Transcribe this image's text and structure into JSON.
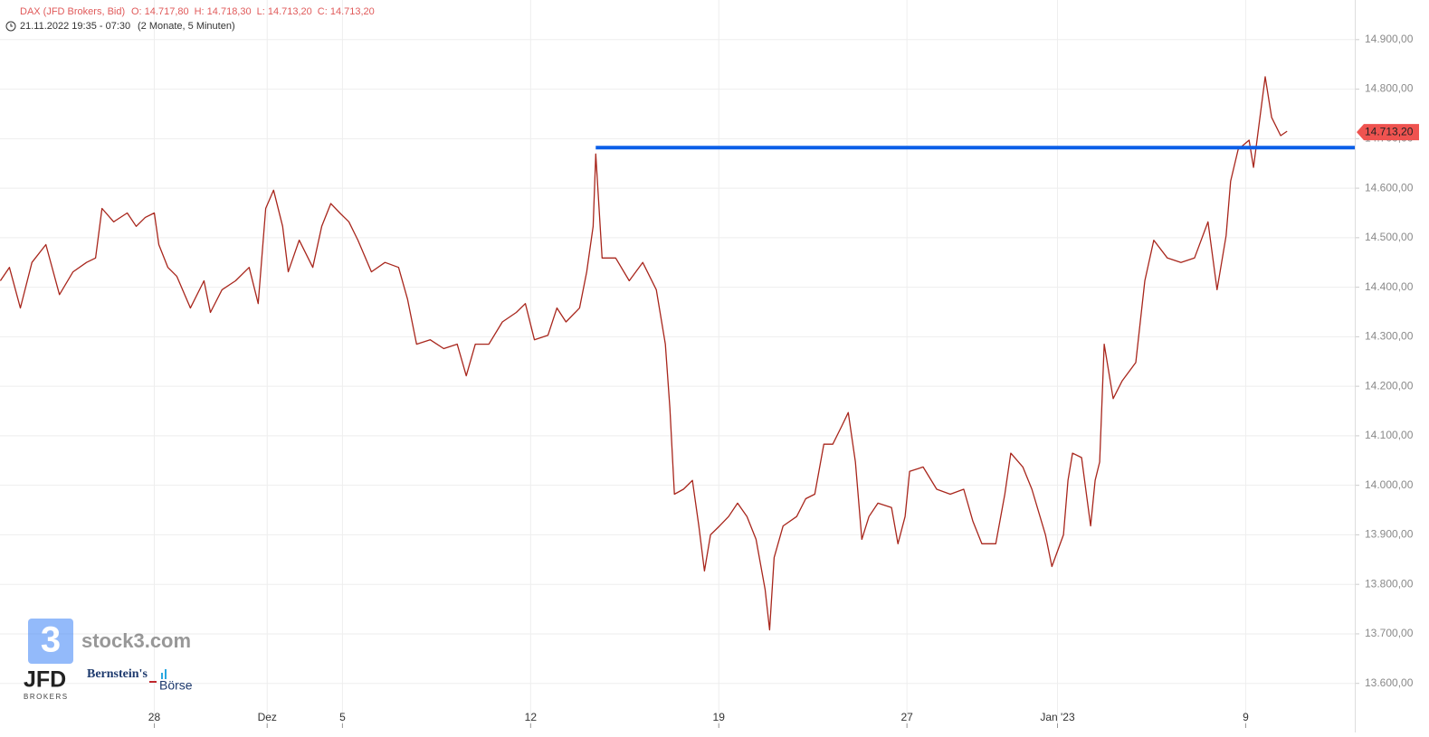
{
  "chart_data": {
    "type": "line",
    "title": "DAX (JFD Brokers, Bid)",
    "ohlc": [
      "O: 14.717,80",
      "H: 14.718,30",
      "L: 14.713,20",
      "C: 14.713,20"
    ],
    "period": "21.11.2022 19:35 - 07:30",
    "interval": "(2 Monate, 5 Minuten)",
    "color": "#a8261c",
    "grid": true,
    "xlim": [
      0.9,
      36.9
    ],
    "xticks": [
      {
        "value": 5,
        "label": "28"
      },
      {
        "value": 8,
        "label": "Dez"
      },
      {
        "value": 10,
        "label": "5"
      },
      {
        "value": 15,
        "label": "12"
      },
      {
        "value": 20,
        "label": "19"
      },
      {
        "value": 25,
        "label": "27"
      },
      {
        "value": 29,
        "label": "Jan '23"
      },
      {
        "value": 34,
        "label": "9"
      }
    ],
    "ylim": [
      13510,
      14980
    ],
    "yticks": [
      {
        "value": 13600,
        "label": "13.600,00"
      },
      {
        "value": 13700,
        "label": "13.700,00"
      },
      {
        "value": 13800,
        "label": "13.800,00"
      },
      {
        "value": 13900,
        "label": "13.900,00"
      },
      {
        "value": 14000,
        "label": "14.000,00"
      },
      {
        "value": 14100,
        "label": "14.100,00"
      },
      {
        "value": 14200,
        "label": "14.200,00"
      },
      {
        "value": 14300,
        "label": "14.300,00"
      },
      {
        "value": 14400,
        "label": "14.400,00"
      },
      {
        "value": 14500,
        "label": "14.500,00"
      },
      {
        "value": 14600,
        "label": "14.600,00"
      },
      {
        "value": 14700,
        "label": "14.700,00"
      },
      {
        "value": 14800,
        "label": "14.800,00"
      },
      {
        "value": 14900,
        "label": "14.900,00"
      }
    ],
    "last_price": {
      "value": 14713.2,
      "label": "14.713,20",
      "color": "#ef5350"
    },
    "level_line": {
      "value": 14682,
      "from_x": 16.73,
      "color": "#0b5fe8"
    },
    "x": [
      0.91,
      1.15,
      1.44,
      1.75,
      2.12,
      2.48,
      2.84,
      3.2,
      3.44,
      3.61,
      3.92,
      4.28,
      4.52,
      4.76,
      5,
      5.12,
      5.36,
      5.6,
      5.96,
      6.32,
      6.49,
      6.8,
      7.16,
      7.52,
      7.76,
      7.96,
      8.17,
      8.41,
      8.56,
      8.85,
      9.21,
      9.45,
      9.69,
      9.93,
      10.17,
      10.41,
      10.77,
      11.13,
      11.49,
      11.73,
      11.97,
      12.33,
      12.69,
      13.05,
      13.29,
      13.53,
      13.89,
      14.25,
      14.62,
      14.86,
      15.1,
      15.46,
      15.7,
      15.94,
      16.3,
      16.49,
      16.66,
      16.73,
      16.9,
      17.26,
      17.62,
      17.98,
      18.34,
      18.58,
      18.7,
      18.82,
      19.06,
      19.3,
      19.47,
      19.62,
      19.78,
      20.02,
      20.26,
      20.5,
      20.75,
      20.99,
      21.23,
      21.35,
      21.47,
      21.71,
      22.07,
      22.31,
      22.55,
      22.79,
      23.03,
      23.27,
      23.44,
      23.63,
      23.8,
      23.99,
      24.23,
      24.59,
      24.76,
      24.95,
      25.07,
      25.43,
      25.79,
      26.15,
      26.51,
      26.75,
      26.99,
      27.36,
      27.6,
      27.76,
      28.08,
      28.32,
      28.68,
      28.85,
      29.16,
      29.28,
      29.4,
      29.64,
      29.88,
      30,
      30.12,
      30.24,
      30.48,
      30.72,
      31.08,
      31.32,
      31.56,
      31.92,
      32.28,
      32.64,
      33,
      33.24,
      33.48,
      33.6,
      33.8,
      34.09,
      34.21,
      34.38,
      34.52,
      34.69,
      34.93,
      35.1
    ],
    "values": [
      14413,
      14440,
      14358,
      14450,
      14486,
      14385,
      14431,
      14450,
      14459,
      14559,
      14532,
      14550,
      14523,
      14541,
      14550,
      14486,
      14440,
      14422,
      14358,
      14413,
      14349,
      14395,
      14413,
      14440,
      14367,
      14559,
      14596,
      14523,
      14431,
      14495,
      14440,
      14523,
      14569,
      14550,
      14532,
      14495,
      14431,
      14450,
      14440,
      14376,
      14285,
      14294,
      14276,
      14285,
      14221,
      14285,
      14285,
      14330,
      14349,
      14367,
      14294,
      14303,
      14358,
      14330,
      14358,
      14431,
      14523,
      14669,
      14459,
      14459,
      14413,
      14450,
      14395,
      14285,
      14156,
      13982,
      13992,
      14010,
      13918,
      13827,
      13900,
      13918,
      13937,
      13964,
      13937,
      13891,
      13790,
      13708,
      13854,
      13918,
      13937,
      13973,
      13982,
      14083,
      14083,
      14120,
      14147,
      14047,
      13891,
      13937,
      13964,
      13955,
      13882,
      13937,
      14028,
      14037,
      13992,
      13982,
      13992,
      13928,
      13882,
      13882,
      13982,
      14065,
      14037,
      13992,
      13900,
      13836,
      13900,
      14010,
      14065,
      14056,
      13918,
      14010,
      14047,
      14285,
      14175,
      14211,
      14248,
      14413,
      14495,
      14459,
      14450,
      14459,
      14532,
      14395,
      14504,
      14614,
      14678,
      14697,
      14642,
      14743,
      14825,
      14743,
      14706,
      14715
    ]
  },
  "logos": {
    "stock3": "stock3.com",
    "stock3_icon": "3",
    "jfd": "JFD",
    "jfd_sub": "BROKERS",
    "bernstein": "Bernstein's",
    "boerse": "Börse"
  }
}
